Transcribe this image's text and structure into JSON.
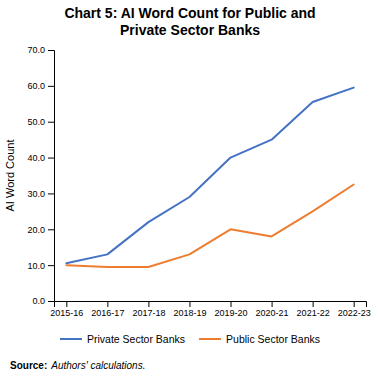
{
  "chart_data": {
    "type": "line",
    "title": "Chart 5: AI Word Count for Public and\nPrivate Sector Banks",
    "ylabel": "AI Word Count",
    "categories": [
      "2015-16",
      "2016-17",
      "2017-18",
      "2018-19",
      "2019-20",
      "2020-21",
      "2021-22",
      "2022-23"
    ],
    "series": [
      {
        "name": "Private Sector Banks",
        "color": "#4472C4",
        "values": [
          10.5,
          13.0,
          22.0,
          29.0,
          40.0,
          45.0,
          55.5,
          59.5
        ]
      },
      {
        "name": "Public Sector Banks",
        "color": "#ED7D31",
        "values": [
          10.0,
          9.5,
          9.5,
          13.0,
          20.0,
          18.0,
          25.0,
          32.5
        ]
      }
    ],
    "ylim": [
      0.0,
      70.0
    ],
    "yticks": [
      {
        "value": 0,
        "label": "0.0"
      },
      {
        "value": 10,
        "label": "10.0"
      },
      {
        "value": 20,
        "label": "20.0"
      },
      {
        "value": 30,
        "label": "30.0"
      },
      {
        "value": 40,
        "label": "40.0"
      },
      {
        "value": 50,
        "label": "50.0"
      },
      {
        "value": 60,
        "label": "60.0"
      },
      {
        "value": 70,
        "label": "70.0"
      }
    ],
    "grid": false,
    "legend": "bottom",
    "annotations": [
      "Source:",
      "Authors' calculations."
    ]
  }
}
